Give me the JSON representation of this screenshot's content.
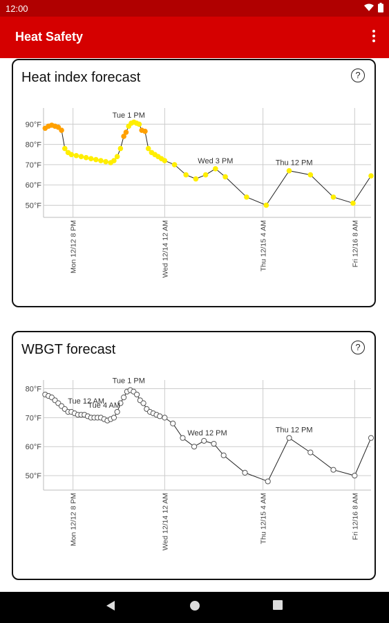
{
  "status_bar": {
    "time": "12:00"
  },
  "app_bar": {
    "title": "Heat Safety"
  },
  "cards": [
    {
      "title": "Heat index forecast",
      "help_label": "?",
      "chart_data": {
        "type": "line",
        "yunit": "°F",
        "ylim": [
          44,
          98
        ],
        "yticks": [
          {
            "value": 50,
            "label": "50°F"
          },
          {
            "value": 60,
            "label": "60°F"
          },
          {
            "value": 70,
            "label": "70°F"
          },
          {
            "value": 80,
            "label": "80°F"
          },
          {
            "value": 90,
            "label": "90°F"
          }
        ],
        "xlim": [
          0,
          100
        ],
        "xticks": [
          {
            "x": 9,
            "label": "Mon 12/12 8 PM"
          },
          {
            "x": 37,
            "label": "Wed 12/14 12 AM"
          },
          {
            "x": 67,
            "label": "Thu 12/15 4 AM"
          },
          {
            "x": 95,
            "label": "Fri 12/16 8 AM"
          }
        ],
        "annotations": [
          {
            "x": 26,
            "y": 90.5,
            "label": "Tue 1 PM"
          },
          {
            "x": 52.5,
            "y": 68,
            "label": "Wed 3 PM"
          },
          {
            "x": 76.5,
            "y": 67,
            "label": "Thu 12 PM"
          }
        ],
        "grid": true,
        "points": [
          {
            "x": 0.5,
            "y": 88,
            "c": "#ffa000"
          },
          {
            "x": 1.5,
            "y": 89,
            "c": "#ffa000"
          },
          {
            "x": 2.5,
            "y": 89.5,
            "c": "#ffa000"
          },
          {
            "x": 3.5,
            "y": 89,
            "c": "#ffa000"
          },
          {
            "x": 4.5,
            "y": 88.5,
            "c": "#ffa000"
          },
          {
            "x": 5.5,
            "y": 87,
            "c": "#ffa000"
          },
          {
            "x": 6.5,
            "y": 78,
            "c": "#ffee00"
          },
          {
            "x": 7.5,
            "y": 76,
            "c": "#ffee00"
          },
          {
            "x": 8.5,
            "y": 75,
            "c": "#ffee00"
          },
          {
            "x": 10,
            "y": 74.5,
            "c": "#ffee00"
          },
          {
            "x": 11.5,
            "y": 74,
            "c": "#ffee00"
          },
          {
            "x": 13,
            "y": 73.5,
            "c": "#ffee00"
          },
          {
            "x": 14.5,
            "y": 73,
            "c": "#ffee00"
          },
          {
            "x": 16,
            "y": 72.5,
            "c": "#ffee00"
          },
          {
            "x": 17.5,
            "y": 72,
            "c": "#ffee00"
          },
          {
            "x": 19,
            "y": 71.5,
            "c": "#ffee00"
          },
          {
            "x": 20.5,
            "y": 71,
            "c": "#ffee00"
          },
          {
            "x": 21.5,
            "y": 72,
            "c": "#ffee00"
          },
          {
            "x": 22.5,
            "y": 74,
            "c": "#ffee00"
          },
          {
            "x": 23.5,
            "y": 78,
            "c": "#ffee00"
          },
          {
            "x": 24.5,
            "y": 84,
            "c": "#ffa000"
          },
          {
            "x": 25.2,
            "y": 86,
            "c": "#ffa000"
          },
          {
            "x": 26,
            "y": 89,
            "c": "#ffee00"
          },
          {
            "x": 26.8,
            "y": 90.5,
            "c": "#ffee00"
          },
          {
            "x": 27.6,
            "y": 91,
            "c": "#ffee00"
          },
          {
            "x": 28.4,
            "y": 90.5,
            "c": "#ffee00"
          },
          {
            "x": 29.2,
            "y": 90,
            "c": "#ffee00"
          },
          {
            "x": 30,
            "y": 87,
            "c": "#ffa000"
          },
          {
            "x": 31,
            "y": 86.5,
            "c": "#ffa000"
          },
          {
            "x": 32,
            "y": 78,
            "c": "#ffee00"
          },
          {
            "x": 33,
            "y": 76,
            "c": "#ffee00"
          },
          {
            "x": 34,
            "y": 75,
            "c": "#ffee00"
          },
          {
            "x": 35,
            "y": 74,
            "c": "#ffee00"
          },
          {
            "x": 36,
            "y": 73,
            "c": "#ffee00"
          },
          {
            "x": 37,
            "y": 72,
            "c": "#ffee00"
          },
          {
            "x": 40,
            "y": 70,
            "c": "#ffee00"
          },
          {
            "x": 43.5,
            "y": 65,
            "c": "#ffee00"
          },
          {
            "x": 46.5,
            "y": 63,
            "c": "#ffee00"
          },
          {
            "x": 49.5,
            "y": 65,
            "c": "#ffee00"
          },
          {
            "x": 52.5,
            "y": 68,
            "c": "#ffee00"
          },
          {
            "x": 55.5,
            "y": 64,
            "c": "#ffee00"
          },
          {
            "x": 62,
            "y": 54,
            "c": "#ffee00"
          },
          {
            "x": 68,
            "y": 50,
            "c": "#ffee00"
          },
          {
            "x": 75,
            "y": 67,
            "c": "#ffee00"
          },
          {
            "x": 81.5,
            "y": 65,
            "c": "#ffee00"
          },
          {
            "x": 88.5,
            "y": 54,
            "c": "#ffee00"
          },
          {
            "x": 94.5,
            "y": 51,
            "c": "#ffee00"
          },
          {
            "x": 100,
            "y": 64.5,
            "c": "#ffee00"
          }
        ]
      }
    },
    {
      "title": "WBGT forecast",
      "help_label": "?",
      "chart_data": {
        "type": "line",
        "yunit": "°F",
        "ylim": [
          45,
          83
        ],
        "yticks": [
          {
            "value": 50,
            "label": "50°F"
          },
          {
            "value": 60,
            "label": "60°F"
          },
          {
            "value": 70,
            "label": "70°F"
          },
          {
            "value": 80,
            "label": "80°F"
          }
        ],
        "xlim": [
          0,
          100
        ],
        "xticks": [
          {
            "x": 9,
            "label": "Mon 12/12 8 PM"
          },
          {
            "x": 37,
            "label": "Wed 12/14 12 AM"
          },
          {
            "x": 67,
            "label": "Thu 12/15 4 AM"
          },
          {
            "x": 95,
            "label": "Fri 12/16 8 AM"
          }
        ],
        "annotations": [
          {
            "x": 13,
            "y": 73,
            "label": "Tue 12 AM"
          },
          {
            "x": 18.5,
            "y": 71.5,
            "label": "Tue 4 AM"
          },
          {
            "x": 26,
            "y": 80,
            "label": "Tue 1 PM"
          },
          {
            "x": 50,
            "y": 62,
            "label": "Wed 12 PM"
          },
          {
            "x": 76.5,
            "y": 63,
            "label": "Thu 12 PM"
          }
        ],
        "grid": true,
        "points": [
          {
            "x": 0.5,
            "y": 78
          },
          {
            "x": 1.5,
            "y": 77.5
          },
          {
            "x": 2.5,
            "y": 77
          },
          {
            "x": 3.5,
            "y": 76
          },
          {
            "x": 4.5,
            "y": 75
          },
          {
            "x": 5.5,
            "y": 74
          },
          {
            "x": 6.5,
            "y": 73
          },
          {
            "x": 7.5,
            "y": 72
          },
          {
            "x": 8.5,
            "y": 72
          },
          {
            "x": 9.5,
            "y": 71.5
          },
          {
            "x": 10.5,
            "y": 71
          },
          {
            "x": 11.5,
            "y": 71
          },
          {
            "x": 12.5,
            "y": 71
          },
          {
            "x": 13.5,
            "y": 70.5
          },
          {
            "x": 14.5,
            "y": 70
          },
          {
            "x": 15.5,
            "y": 70
          },
          {
            "x": 16.5,
            "y": 70
          },
          {
            "x": 17.5,
            "y": 70
          },
          {
            "x": 18.5,
            "y": 69.5
          },
          {
            "x": 19.5,
            "y": 69
          },
          {
            "x": 20.5,
            "y": 69.5
          },
          {
            "x": 21.5,
            "y": 70
          },
          {
            "x": 22.5,
            "y": 72
          },
          {
            "x": 23.5,
            "y": 75
          },
          {
            "x": 24.5,
            "y": 77
          },
          {
            "x": 25.5,
            "y": 79
          },
          {
            "x": 26.5,
            "y": 79.5
          },
          {
            "x": 27.5,
            "y": 79
          },
          {
            "x": 28.5,
            "y": 78
          },
          {
            "x": 29.5,
            "y": 76
          },
          {
            "x": 30.5,
            "y": 75
          },
          {
            "x": 31.5,
            "y": 73
          },
          {
            "x": 32.5,
            "y": 72
          },
          {
            "x": 33.5,
            "y": 71.5
          },
          {
            "x": 34.5,
            "y": 71
          },
          {
            "x": 35.5,
            "y": 70.5
          },
          {
            "x": 37,
            "y": 70
          },
          {
            "x": 39.5,
            "y": 68
          },
          {
            "x": 42.5,
            "y": 63
          },
          {
            "x": 46,
            "y": 60
          },
          {
            "x": 49,
            "y": 62
          },
          {
            "x": 52,
            "y": 61
          },
          {
            "x": 55,
            "y": 57
          },
          {
            "x": 61.5,
            "y": 51
          },
          {
            "x": 68.5,
            "y": 48
          },
          {
            "x": 75,
            "y": 63
          },
          {
            "x": 81.5,
            "y": 58
          },
          {
            "x": 88.5,
            "y": 52
          },
          {
            "x": 95,
            "y": 50
          },
          {
            "x": 100,
            "y": 63
          }
        ]
      }
    }
  ]
}
